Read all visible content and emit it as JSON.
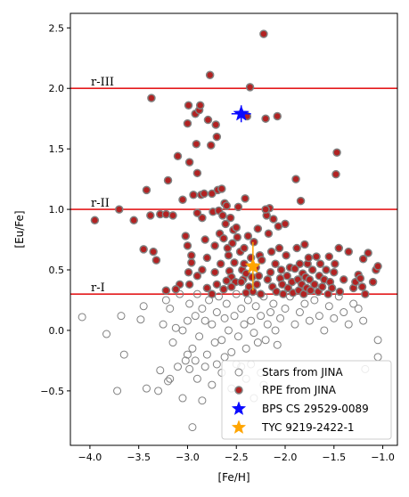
{
  "chart_data": {
    "type": "scatter",
    "title": "",
    "xlabel": "[Fe/H]",
    "ylabel": "[Eu/Fe]",
    "xlim": [
      -4.2,
      -0.85
    ],
    "ylim": [
      -0.95,
      2.62
    ],
    "xticks": [
      -4.0,
      -3.5,
      -3.0,
      -2.5,
      -2.0,
      -1.5,
      -1.0
    ],
    "xtick_labels": [
      "−4.0",
      "−3.5",
      "−3.0",
      "−2.5",
      "−2.0",
      "−1.5",
      "−1.0"
    ],
    "yticks": [
      -0.5,
      0.0,
      0.5,
      1.0,
      1.5,
      2.0,
      2.5
    ],
    "ytick_labels": [
      "−0.5",
      "0.0",
      "0.5",
      "1.0",
      "1.5",
      "2.0",
      "2.5"
    ],
    "grid": false,
    "legend_position": "bottom-right",
    "reference_lines": [
      {
        "label": "r-I",
        "y": 0.3,
        "color": "#e41a1c"
      },
      {
        "label": "r-II",
        "y": 1.0,
        "color": "#e41a1c"
      },
      {
        "label": "r-III",
        "y": 2.0,
        "color": "#e41a1c"
      }
    ],
    "series": [
      {
        "name": "Stars from JINA",
        "marker": "open-circle",
        "edge_color": "#808080",
        "points": [
          [
            -4.08,
            0.11
          ],
          [
            -3.83,
            -0.03
          ],
          [
            -3.68,
            0.12
          ],
          [
            -3.65,
            -0.2
          ],
          [
            -3.48,
            0.09
          ],
          [
            -3.45,
            0.2
          ],
          [
            -3.42,
            -0.48
          ],
          [
            -3.28,
            -0.33
          ],
          [
            -3.25,
            0.05
          ],
          [
            -3.22,
            0.25
          ],
          [
            -3.18,
            0.18
          ],
          [
            -3.15,
            -0.1
          ],
          [
            -3.12,
            0.02
          ],
          [
            -3.08,
            0.3
          ],
          [
            -3.05,
            0.0
          ],
          [
            -3.02,
            -0.25
          ],
          [
            -3.0,
            0.08
          ],
          [
            -2.98,
            0.22
          ],
          [
            -2.95,
            -0.15
          ],
          [
            -2.92,
            0.12
          ],
          [
            -2.9,
            0.3
          ],
          [
            -2.88,
            -0.05
          ],
          [
            -2.85,
            0.18
          ],
          [
            -2.82,
            0.08
          ],
          [
            -2.8,
            -0.2
          ],
          [
            -2.78,
            0.25
          ],
          [
            -2.75,
            0.05
          ],
          [
            -2.72,
            -0.1
          ],
          [
            -2.7,
            0.15
          ],
          [
            -2.68,
            0.28
          ],
          [
            -2.65,
            -0.08
          ],
          [
            -2.62,
            0.1
          ],
          [
            -2.6,
            0.22
          ],
          [
            -2.58,
            0.0
          ],
          [
            -2.55,
            -0.18
          ],
          [
            -2.52,
            0.12
          ],
          [
            -2.5,
            0.3
          ],
          [
            -2.48,
            -0.05
          ],
          [
            -2.45,
            0.18
          ],
          [
            -2.42,
            0.05
          ],
          [
            -2.4,
            -0.15
          ],
          [
            -2.38,
            0.25
          ],
          [
            -2.35,
            0.08
          ],
          [
            -2.32,
            -0.02
          ],
          [
            -2.3,
            0.2
          ],
          [
            -2.28,
            -0.1
          ],
          [
            -2.25,
            0.12
          ],
          [
            -2.22,
            0.28
          ],
          [
            -2.2,
            -0.08
          ],
          [
            -2.18,
            0.05
          ],
          [
            -2.15,
            0.15
          ],
          [
            -2.12,
            0.22
          ],
          [
            -2.1,
            0.0
          ],
          [
            -2.08,
            -0.12
          ],
          [
            -2.05,
            0.1
          ],
          [
            -2.0,
            0.18
          ],
          [
            -1.95,
            0.28
          ],
          [
            -1.9,
            0.05
          ],
          [
            -1.85,
            0.15
          ],
          [
            -1.8,
            0.22
          ],
          [
            -1.75,
            0.08
          ],
          [
            -1.7,
            0.25
          ],
          [
            -1.65,
            0.12
          ],
          [
            -1.6,
            0.0
          ],
          [
            -1.55,
            0.2
          ],
          [
            -1.5,
            0.1
          ],
          [
            -1.45,
            0.28
          ],
          [
            -1.4,
            0.15
          ],
          [
            -1.35,
            0.05
          ],
          [
            -1.3,
            0.22
          ],
          [
            -1.25,
            0.18
          ],
          [
            -1.2,
            0.08
          ],
          [
            -1.18,
            -0.32
          ],
          [
            -1.05,
            -0.08
          ],
          [
            -1.05,
            -0.22
          ],
          [
            -3.72,
            -0.5
          ],
          [
            -3.3,
            -0.5
          ],
          [
            -3.2,
            -0.42
          ],
          [
            -3.05,
            -0.56
          ],
          [
            -2.95,
            -0.8
          ],
          [
            -2.85,
            -0.58
          ],
          [
            -2.75,
            -0.45
          ],
          [
            -2.65,
            -0.35
          ],
          [
            -2.55,
            -0.48
          ],
          [
            -2.4,
            -0.4
          ],
          [
            -2.32,
            -0.56
          ],
          [
            -2.22,
            -0.45
          ],
          [
            -3.1,
            -0.3
          ],
          [
            -2.98,
            -0.32
          ],
          [
            -2.9,
            -0.4
          ],
          [
            -2.82,
            -0.3
          ],
          [
            -2.7,
            -0.28
          ],
          [
            -2.62,
            -0.22
          ],
          [
            -2.5,
            -0.28
          ],
          [
            -2.45,
            -0.3
          ],
          [
            -2.35,
            -0.28
          ],
          [
            -2.25,
            -0.35
          ],
          [
            -3.18,
            -0.4
          ],
          [
            -3.0,
            -0.2
          ],
          [
            -2.92,
            -0.25
          ]
        ]
      },
      {
        "name": "RPE from JINA",
        "marker": "filled-circle",
        "face_color": "#b22222",
        "edge_color": "#808080",
        "points": [
          [
            -3.95,
            0.91
          ],
          [
            -3.7,
            1.0
          ],
          [
            -3.55,
            0.91
          ],
          [
            -3.45,
            0.67
          ],
          [
            -3.42,
            1.16
          ],
          [
            -3.38,
            0.95
          ],
          [
            -3.37,
            1.92
          ],
          [
            -3.35,
            0.65
          ],
          [
            -3.32,
            0.58
          ],
          [
            -3.28,
            0.96
          ],
          [
            -3.22,
            0.96
          ],
          [
            -3.2,
            1.24
          ],
          [
            -3.15,
            0.95
          ],
          [
            -3.1,
            1.44
          ],
          [
            -3.05,
            1.08
          ],
          [
            -3.02,
            0.78
          ],
          [
            -3.0,
            1.71
          ],
          [
            -2.99,
            1.86
          ],
          [
            -2.98,
            1.39
          ],
          [
            -2.96,
            0.62
          ],
          [
            -2.94,
            1.12
          ],
          [
            -2.92,
            1.79
          ],
          [
            -2.91,
            1.54
          ],
          [
            -2.9,
            1.3
          ],
          [
            -2.88,
            1.82
          ],
          [
            -2.87,
            1.86
          ],
          [
            -2.86,
            1.12
          ],
          [
            -2.85,
            0.93
          ],
          [
            -2.83,
            1.13
          ],
          [
            -2.82,
            0.75
          ],
          [
            -2.8,
            0.6
          ],
          [
            -2.79,
            1.74
          ],
          [
            -2.77,
            2.11
          ],
          [
            -2.76,
            1.53
          ],
          [
            -2.75,
            1.13
          ],
          [
            -2.74,
            0.98
          ],
          [
            -2.72,
            0.7
          ],
          [
            -2.71,
            1.7
          ],
          [
            -2.7,
            1.6
          ],
          [
            -2.69,
            1.16
          ],
          [
            -2.68,
            0.99
          ],
          [
            -2.67,
            0.8
          ],
          [
            -2.66,
            0.55
          ],
          [
            -2.65,
            1.17
          ],
          [
            -2.64,
            0.95
          ],
          [
            -2.63,
            0.76
          ],
          [
            -2.62,
            1.05
          ],
          [
            -2.61,
            0.88
          ],
          [
            -2.6,
            1.03
          ],
          [
            -2.59,
            0.68
          ],
          [
            -2.58,
            0.62
          ],
          [
            -2.57,
            0.49
          ],
          [
            -2.56,
            0.93
          ],
          [
            -2.55,
            0.44
          ],
          [
            -2.54,
            0.72
          ],
          [
            -2.53,
            0.83
          ],
          [
            -2.52,
            0.56
          ],
          [
            -2.51,
            0.4
          ],
          [
            -2.5,
            0.85
          ],
          [
            -2.49,
            0.77
          ],
          [
            -2.48,
            1.02
          ],
          [
            -2.46,
            0.65
          ],
          [
            -2.44,
            0.5
          ],
          [
            -2.43,
            0.42
          ],
          [
            -2.42,
            0.68
          ],
          [
            -2.41,
            1.09
          ],
          [
            -2.4,
            0.47
          ],
          [
            -2.39,
            1.77
          ],
          [
            -2.38,
            0.78
          ],
          [
            -2.37,
            0.36
          ],
          [
            -2.36,
            2.01
          ],
          [
            -2.35,
            0.6
          ],
          [
            -2.34,
            0.44
          ],
          [
            -2.33,
            0.32
          ],
          [
            -2.32,
            0.73
          ],
          [
            -2.3,
            0.52
          ],
          [
            -2.29,
            0.38
          ],
          [
            -2.28,
            0.84
          ],
          [
            -2.27,
            0.45
          ],
          [
            -2.26,
            0.62
          ],
          [
            -2.25,
            0.3
          ],
          [
            -2.24,
            0.58
          ],
          [
            -2.22,
            2.45
          ],
          [
            -2.2,
            1.75
          ],
          [
            -2.19,
            0.95
          ],
          [
            -2.18,
            0.42
          ],
          [
            -2.17,
            0.8
          ],
          [
            -2.16,
            1.01
          ],
          [
            -2.15,
            0.48
          ],
          [
            -2.14,
            0.65
          ],
          [
            -2.13,
            0.36
          ],
          [
            -2.12,
            0.92
          ],
          [
            -2.1,
            0.55
          ],
          [
            -2.09,
            0.32
          ],
          [
            -2.08,
            1.77
          ],
          [
            -2.07,
            0.86
          ],
          [
            -2.06,
            0.68
          ],
          [
            -2.05,
            0.43
          ],
          [
            -2.04,
            0.5
          ],
          [
            -2.03,
            0.38
          ],
          [
            -2.02,
            0.3
          ],
          [
            -2.0,
            0.88
          ],
          [
            -1.99,
            0.62
          ],
          [
            -1.98,
            0.45
          ],
          [
            -1.97,
            0.35
          ],
          [
            -1.95,
            0.52
          ],
          [
            -1.93,
            0.4
          ],
          [
            -1.92,
            0.31
          ],
          [
            -1.9,
            0.51
          ],
          [
            -1.89,
            1.25
          ],
          [
            -1.88,
            0.68
          ],
          [
            -1.87,
            0.42
          ],
          [
            -1.86,
            0.33
          ],
          [
            -1.85,
            0.55
          ],
          [
            -1.84,
            1.07
          ],
          [
            -1.83,
            0.38
          ],
          [
            -1.82,
            0.47
          ],
          [
            -1.81,
            0.3
          ],
          [
            -1.8,
            0.71
          ],
          [
            -1.79,
            0.44
          ],
          [
            -1.78,
            0.35
          ],
          [
            -1.77,
            0.55
          ],
          [
            -1.76,
            0.6
          ],
          [
            -1.75,
            0.42
          ],
          [
            -1.74,
            0.33
          ],
          [
            -1.72,
            0.5
          ],
          [
            -1.7,
            0.38
          ],
          [
            -1.68,
            0.61
          ],
          [
            -1.66,
            0.32
          ],
          [
            -1.65,
            0.45
          ],
          [
            -1.64,
            0.55
          ],
          [
            -1.62,
            0.36
          ],
          [
            -1.6,
            0.42
          ],
          [
            -1.58,
            0.5
          ],
          [
            -1.56,
            0.3
          ],
          [
            -1.55,
            0.61
          ],
          [
            -1.54,
            0.4
          ],
          [
            -1.52,
            0.35
          ],
          [
            -1.5,
            0.48
          ],
          [
            -1.49,
            0.55
          ],
          [
            -1.48,
            1.29
          ],
          [
            -1.47,
            1.47
          ],
          [
            -1.45,
            0.68
          ],
          [
            -1.44,
            0.32
          ],
          [
            -1.4,
            0.42
          ],
          [
            -1.35,
            0.65
          ],
          [
            -1.3,
            0.35
          ],
          [
            -1.28,
            0.4
          ],
          [
            -1.25,
            0.46
          ],
          [
            -1.23,
            0.43
          ],
          [
            -1.21,
            0.36
          ],
          [
            -1.2,
            0.59
          ],
          [
            -1.18,
            0.3
          ],
          [
            -1.15,
            0.64
          ],
          [
            -1.1,
            0.4
          ],
          [
            -1.07,
            0.5
          ],
          [
            -1.05,
            0.53
          ],
          [
            -2.2,
            1.0
          ],
          [
            -2.9,
            0.97
          ],
          [
            -3.0,
            0.7
          ],
          [
            -2.96,
            0.56
          ],
          [
            -2.99,
            0.48
          ],
          [
            -2.98,
            0.38
          ],
          [
            -2.7,
            0.38
          ],
          [
            -2.72,
            0.48
          ],
          [
            -2.8,
            0.35
          ],
          [
            -2.9,
            0.45
          ],
          [
            -2.85,
            0.5
          ],
          [
            -2.75,
            0.3
          ],
          [
            -2.63,
            0.34
          ],
          [
            -2.6,
            0.41
          ],
          [
            -2.55,
            0.36
          ],
          [
            -2.4,
            0.31
          ],
          [
            -2.42,
            0.55
          ],
          [
            -2.45,
            0.4
          ],
          [
            -3.08,
            0.38
          ],
          [
            -3.12,
            0.34
          ],
          [
            -3.22,
            0.33
          ]
        ]
      },
      {
        "name": "BPS CS 29529-0089",
        "marker": "star",
        "face_color": "#0a0aff",
        "points": [
          [
            -2.45,
            1.79
          ]
        ],
        "xerr": 0.1,
        "yerr": 0.07
      },
      {
        "name": "TYC 9219-2422-1",
        "marker": "star",
        "face_color": "#ffa500",
        "points": [
          [
            -2.33,
            0.53
          ]
        ],
        "xerr": 0.05,
        "yerr": 0.2
      }
    ]
  }
}
